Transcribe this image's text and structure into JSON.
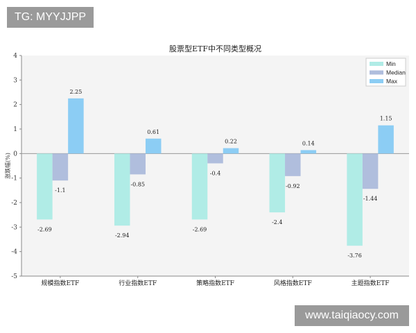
{
  "watermarks": {
    "top_left": "TG: MYYJJPP",
    "bottom_right": "www.taiqiaocy.com"
  },
  "chart_data": {
    "type": "bar",
    "title": "股票型ETF中不同类型概况",
    "xlabel": "",
    "ylabel": "涨跌幅(%)",
    "ylim": [
      -5,
      4
    ],
    "yticks": [
      -5,
      -4,
      -3,
      -2,
      -1,
      0,
      1,
      2,
      3,
      4
    ],
    "grid": false,
    "legend_position": "top-right",
    "categories": [
      "规模指数ETF",
      "行业指数ETF",
      "策略指数ETF",
      "风格指数ETF",
      "主题指数ETF"
    ],
    "series": [
      {
        "name": "Min",
        "color": "#b0ece6",
        "values": [
          -2.69,
          -2.94,
          -2.69,
          -2.4,
          -3.76
        ]
      },
      {
        "name": "Median",
        "color": "#b0bedd",
        "values": [
          -1.1,
          -0.85,
          -0.4,
          -0.92,
          -1.44
        ]
      },
      {
        "name": "Max",
        "color": "#8ccdf4",
        "values": [
          2.25,
          0.61,
          0.22,
          0.14,
          1.15
        ]
      }
    ]
  }
}
